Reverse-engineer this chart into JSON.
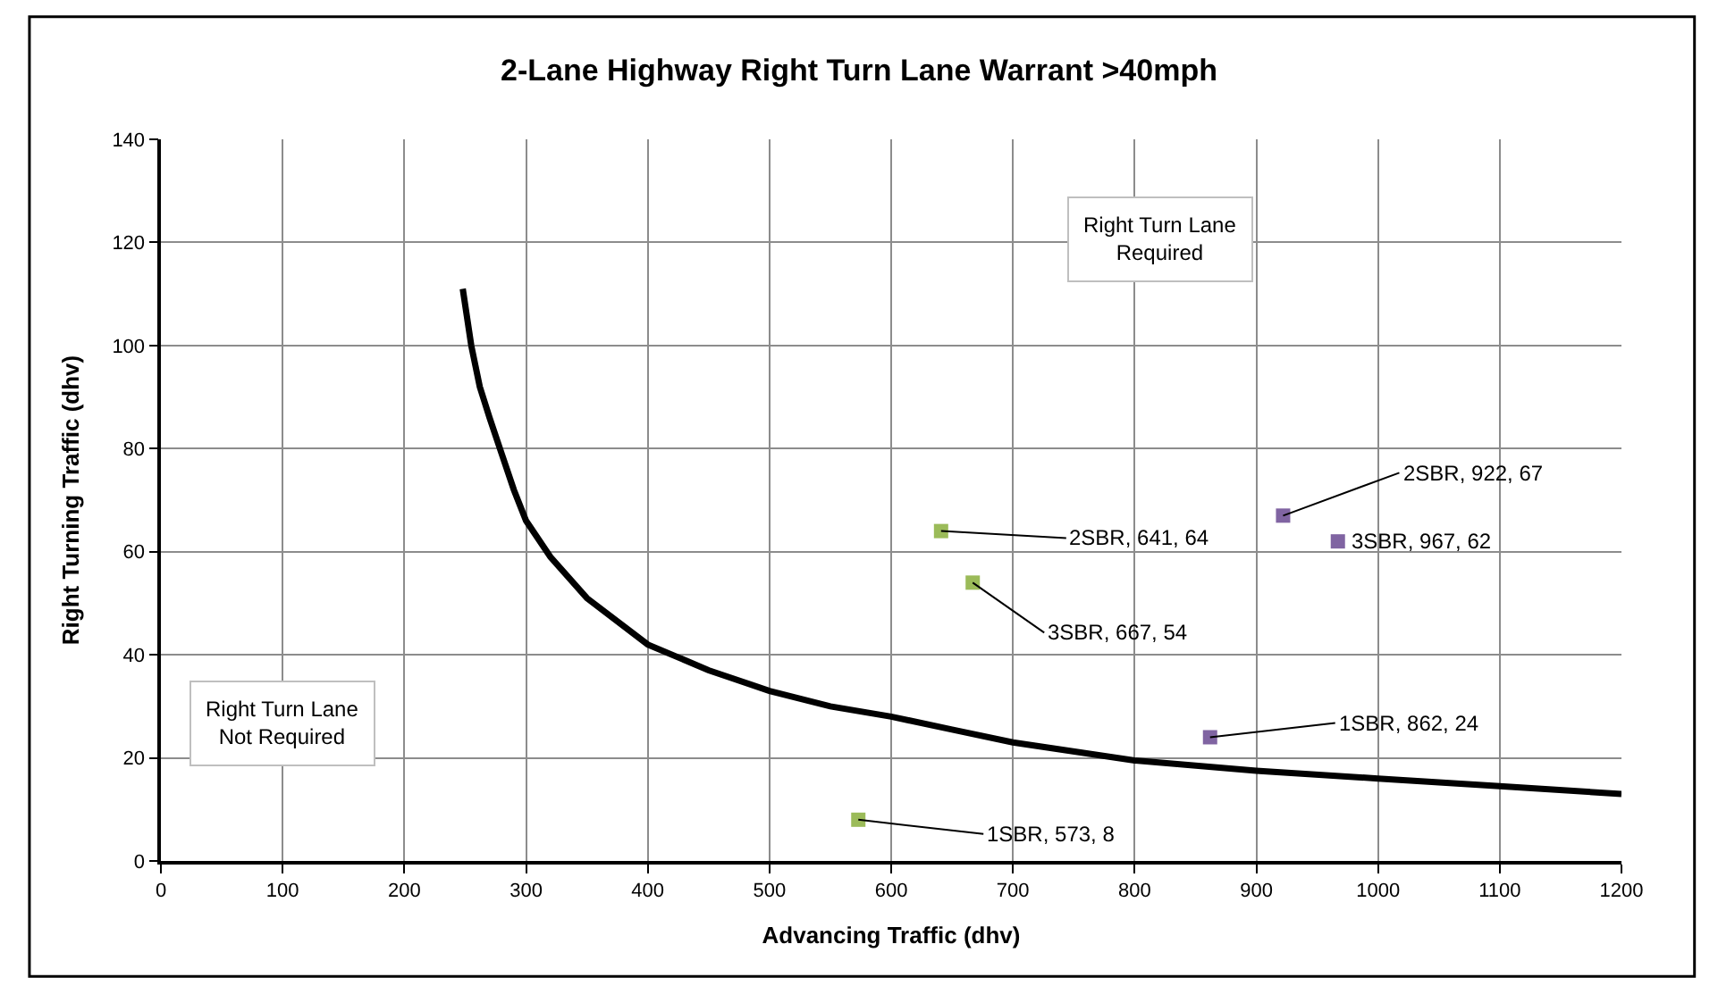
{
  "chart_data": {
    "type": "scatter",
    "title": "2-Lane Highway Right Turn Lane Warrant >40mph",
    "xlabel": "Advancing Traffic (dhv)",
    "ylabel": "Right Turning Traffic (dhv)",
    "xlim": [
      0,
      1200
    ],
    "xticks": [
      0,
      100,
      200,
      300,
      400,
      500,
      600,
      700,
      800,
      900,
      1000,
      1100,
      1200
    ],
    "ylim": [
      0,
      140
    ],
    "yticks": [
      0,
      20,
      40,
      60,
      80,
      100,
      120,
      140
    ],
    "grid": true,
    "marker": "square",
    "series": [
      {
        "type": "line",
        "color": "#000000",
        "marker": "none",
        "line_style": "solid",
        "x": [
          248,
          255,
          262,
          270,
          280,
          290,
          300,
          320,
          350,
          400,
          450,
          500,
          550,
          600,
          650,
          700,
          800,
          900,
          1000,
          1100,
          1200
        ],
        "values": [
          111,
          100,
          92,
          86,
          79,
          72,
          66,
          59,
          51,
          42,
          37,
          33,
          30,
          28,
          25.5,
          23,
          19.5,
          17.5,
          16,
          14.5,
          13
        ]
      },
      {
        "color": "#9bbb59",
        "x": [
          573,
          641,
          667
        ],
        "values": [
          8,
          64,
          54
        ],
        "value_labels": [
          "1SBR, 573, 8",
          "2SBR, 641, 64",
          "3SBR, 667, 54"
        ]
      },
      {
        "color": "#8064a2",
        "x": [
          862,
          922,
          967
        ],
        "values": [
          24,
          67,
          62
        ],
        "value_labels": [
          "1SBR, 862, 24",
          "2SBR, 922, 67",
          "3SBR, 967, 62"
        ]
      }
    ],
    "annotations": [
      "Right Turn Lane\nRequired",
      "Right Turn Lane\nNot Required"
    ]
  }
}
